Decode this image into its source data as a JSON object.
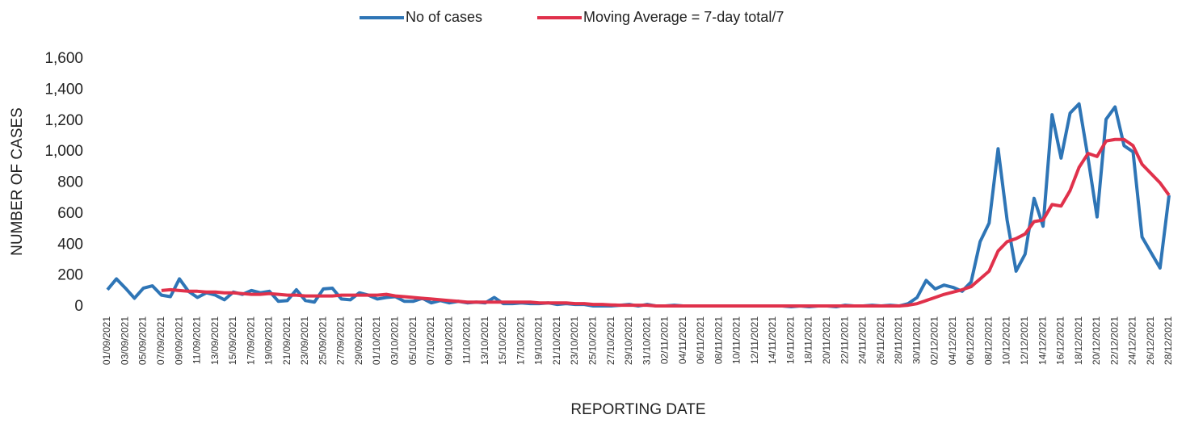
{
  "chart_data": {
    "type": "line",
    "x_label": "REPORTING DATE",
    "y_label": "NUMBER OF CASES",
    "categories": [
      "01/09/2021",
      null,
      "03/09/2021",
      null,
      "05/09/2021",
      null,
      "07/09/2021",
      null,
      "09/09/2021",
      null,
      "11/09/2021",
      null,
      "13/09/2021",
      null,
      "15/09/2021",
      null,
      "17/09/2021",
      null,
      "19/09/2021",
      null,
      "21/09/2021",
      null,
      "23/09/2021",
      null,
      "25/09/2021",
      null,
      "27/09/2021",
      null,
      "29/09/2021",
      null,
      "01/10/2021",
      null,
      "03/10/2021",
      null,
      "05/10/2021",
      null,
      "07/10/2021",
      null,
      "09/10/2021",
      null,
      "11/10/2021",
      null,
      "13/10/2021",
      null,
      "15/10/2021",
      null,
      "17/10/2021",
      null,
      "19/10/2021",
      null,
      "21/10/2021",
      null,
      "23/10/2021",
      null,
      "25/10/2021",
      null,
      "27/10/2021",
      null,
      "29/10/2021",
      null,
      "31/10/2021",
      null,
      "02/11/2021",
      null,
      "04/11/2021",
      null,
      "06/11/2021",
      null,
      "08/11/2021",
      null,
      "10/11/2021",
      null,
      "12/11/2021",
      null,
      "14/11/2021",
      null,
      "16/11/2021",
      null,
      "18/11/2021",
      null,
      "20/11/2021",
      null,
      "22/11/2021",
      null,
      "24/11/2021",
      null,
      "26/11/2021",
      null,
      "28/11/2021",
      null,
      "30/11/2021",
      null,
      "02/12/2021",
      null,
      "04/12/2021",
      null,
      "06/12/2021",
      null,
      "08/12/2021",
      null,
      "10/12/2021",
      null,
      "12/12/2021",
      null,
      "14/12/2021",
      null,
      "16/12/2021",
      null,
      "18/12/2021",
      null,
      "20/12/2021",
      null,
      "22/12/2021",
      null,
      "24/12/2021",
      null,
      "26/12/2021",
      null,
      "28/12/2021"
    ],
    "series": [
      {
        "name": "No of cases",
        "color": "#2e75b6",
        "values": [
          110,
          180,
          120,
          55,
          120,
          135,
          75,
          65,
          180,
          100,
          60,
          90,
          75,
          45,
          95,
          80,
          105,
          90,
          100,
          35,
          40,
          110,
          40,
          30,
          115,
          120,
          50,
          45,
          90,
          75,
          50,
          60,
          65,
          35,
          35,
          55,
          25,
          40,
          25,
          35,
          25,
          30,
          25,
          60,
          20,
          20,
          25,
          20,
          20,
          25,
          15,
          20,
          15,
          15,
          5,
          5,
          5,
          10,
          15,
          5,
          15,
          5,
          5,
          10,
          5,
          5,
          5,
          5,
          5,
          5,
          5,
          5,
          5,
          5,
          5,
          5,
          0,
          5,
          0,
          5,
          5,
          0,
          10,
          5,
          5,
          10,
          5,
          10,
          5,
          20,
          60,
          170,
          115,
          140,
          125,
          100,
          160,
          420,
          540,
          1020,
          560,
          230,
          340,
          700,
          520,
          1240,
          960,
          1250,
          1310,
          960,
          580,
          1210,
          1290,
          1040,
          1000,
          450,
          350,
          250,
          720
        ]
      },
      {
        "name": "Moving Average = 7-day total/7",
        "color": "#e0314b",
        "values": [
          null,
          null,
          null,
          null,
          null,
          null,
          105,
          110,
          105,
          100,
          100,
          95,
          95,
          90,
          90,
          85,
          80,
          80,
          85,
          80,
          75,
          75,
          70,
          70,
          70,
          70,
          75,
          75,
          75,
          75,
          75,
          80,
          70,
          65,
          60,
          55,
          50,
          45,
          40,
          35,
          30,
          30,
          30,
          30,
          30,
          30,
          30,
          30,
          25,
          25,
          25,
          25,
          20,
          20,
          15,
          15,
          12,
          10,
          10,
          10,
          10,
          5,
          5,
          5,
          5,
          5,
          5,
          5,
          5,
          5,
          5,
          5,
          5,
          5,
          5,
          5,
          5,
          5,
          5,
          5,
          5,
          5,
          5,
          5,
          5,
          5,
          5,
          5,
          5,
          10,
          20,
          40,
          60,
          80,
          95,
          110,
          130,
          180,
          230,
          360,
          420,
          440,
          470,
          550,
          560,
          660,
          650,
          750,
          900,
          990,
          970,
          1070,
          1080,
          1080,
          1040,
          920,
          860,
          800,
          720
        ]
      }
    ],
    "ylim": [
      0,
      1600
    ],
    "yticks": [
      0,
      200,
      400,
      600,
      800,
      {
        "value": 1000,
        "label": "1,000"
      },
      {
        "value": 1200,
        "label": "1,200"
      },
      {
        "value": 1400,
        "label": "1,400"
      },
      {
        "value": 1600,
        "label": "1,600"
      }
    ],
    "grid": false,
    "legend": "top"
  }
}
